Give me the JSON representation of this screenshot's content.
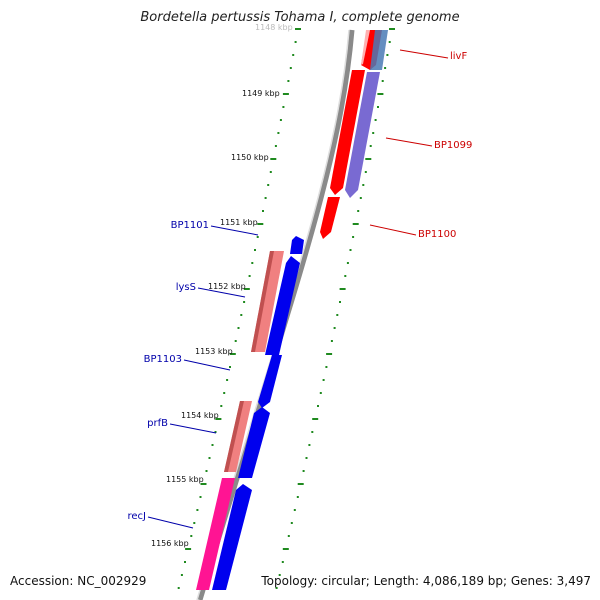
{
  "title": "Bordetella pertussis Tohama I, complete genome",
  "accession_text": "Accession: NC_002929",
  "summary_text": "Topology: circular; Length: 4,086,189 bp; Genes: 3,497",
  "colors": {
    "ruler_tick": "#1f8a1f",
    "backbone": "#8a8a8a",
    "forward_gene": "#ff0000",
    "forward_gene_alt": "#6a5acd",
    "forward_gene_alt2": "#4a7ab5",
    "reverse_gene": "#0000ee",
    "rna_light": "#f08080",
    "pink": "#ff1493",
    "label_blue": "#0000aa",
    "label_red": "#cc0000"
  },
  "ruler": {
    "ticks": [
      {
        "label": "1148 kbp",
        "faded": true
      },
      {
        "label": "1149 kbp"
      },
      {
        "label": "1150 kbp"
      },
      {
        "label": "1151 kbp"
      },
      {
        "label": "1152 kbp"
      },
      {
        "label": "1153 kbp"
      },
      {
        "label": "1154 kbp"
      },
      {
        "label": "1155 kbp"
      },
      {
        "label": "1156 kbp"
      }
    ]
  },
  "gene_labels": {
    "right": [
      {
        "name": "livF"
      },
      {
        "name": "BP1099"
      },
      {
        "name": "BP1100"
      }
    ],
    "left": [
      {
        "name": "BP1101"
      },
      {
        "name": "lysS"
      },
      {
        "name": "BP1103"
      },
      {
        "name": "prfB"
      },
      {
        "name": "recJ"
      }
    ]
  }
}
